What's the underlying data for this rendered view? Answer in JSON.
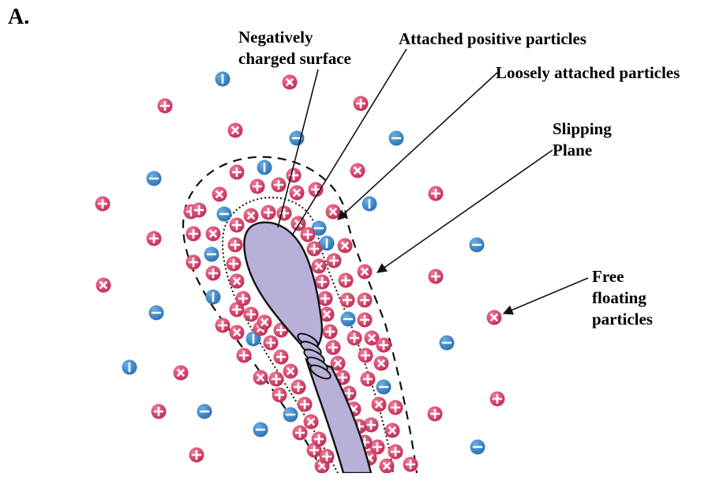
{
  "panel_label": "A.",
  "labels": {
    "negative_surface_line1": "Negatively",
    "negative_surface_line2": "charged surface",
    "attached_positive": "Attached positive particles",
    "loosely_attached": "Loosely attached particles",
    "slipping_plane_line1": "Slipping",
    "slipping_plane_line2": "Plane",
    "free_floating_line1": "Free",
    "free_floating_line2": "floating",
    "free_floating_line3": "particles"
  },
  "colors": {
    "positive_particle": "#d63a64",
    "negative_particle": "#3a86c8",
    "body_fill": "#b8b0d8",
    "outline": "#111111"
  },
  "icons": {
    "positive_particle": "plus-cross-icon",
    "negative_particle": "minus-icon"
  }
}
